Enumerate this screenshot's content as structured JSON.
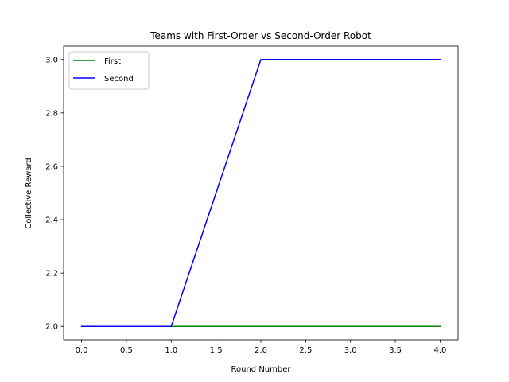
{
  "chart_data": {
    "type": "line",
    "title": "Teams with First-Order vs Second-Order Robot",
    "xlabel": "Round Number",
    "ylabel": "Collective Reward",
    "xlim": [
      -0.2,
      4.2
    ],
    "ylim": [
      1.95,
      3.05
    ],
    "xticks": [
      0.0,
      0.5,
      1.0,
      1.5,
      2.0,
      2.5,
      3.0,
      3.5,
      4.0
    ],
    "xtick_labels": [
      "0.0",
      "0.5",
      "1.0",
      "1.5",
      "2.0",
      "2.5",
      "3.0",
      "3.5",
      "4.0"
    ],
    "yticks": [
      2.0,
      2.2,
      2.4,
      2.6,
      2.8,
      3.0
    ],
    "ytick_labels": [
      "2.0",
      "2.2",
      "2.4",
      "2.6",
      "2.8",
      "3.0"
    ],
    "grid": false,
    "legend_position": "top-left",
    "x": [
      0,
      1,
      2,
      3,
      4
    ],
    "series": [
      {
        "name": "First",
        "color": "#008000",
        "values": [
          2,
          2,
          2,
          2,
          2
        ]
      },
      {
        "name": "Second",
        "color": "#0000ff",
        "values": [
          2,
          2,
          3,
          3,
          3
        ]
      }
    ]
  }
}
